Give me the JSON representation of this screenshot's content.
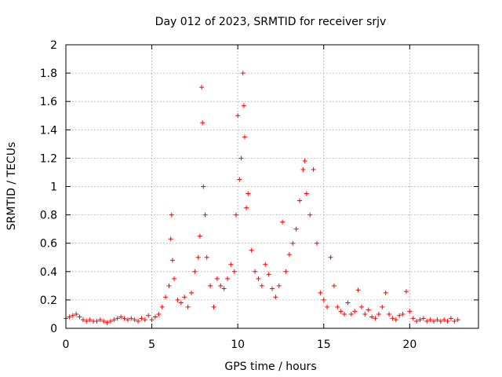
{
  "chart_data": {
    "type": "scatter",
    "title": "Day 012 of 2023, SRMTID for receiver srjv",
    "xlabel": "GPS time / hours",
    "ylabel": "SRMTID / TECUs",
    "xlim": [
      0,
      24
    ],
    "ylim": [
      0,
      2
    ],
    "xticks": [
      "0",
      "5",
      "10",
      "15",
      "20"
    ],
    "yticks": [
      "0",
      "0.2",
      "0.4",
      "0.6",
      "0.8",
      "1",
      "1.2",
      "1.4",
      "1.6",
      "1.8",
      "2"
    ],
    "grid": true,
    "marker": "+",
    "series": [
      {
        "name": "srjv",
        "color": "#ff0000",
        "points": [
          [
            0.0,
            0.07
          ],
          [
            0.2,
            0.08
          ],
          [
            0.4,
            0.09
          ],
          [
            0.6,
            0.1
          ],
          [
            0.8,
            0.08
          ],
          [
            1.0,
            0.06
          ],
          [
            1.2,
            0.05
          ],
          [
            1.4,
            0.06
          ],
          [
            1.6,
            0.05
          ],
          [
            1.8,
            0.05
          ],
          [
            2.0,
            0.06
          ],
          [
            2.2,
            0.05
          ],
          [
            2.4,
            0.04
          ],
          [
            2.6,
            0.05
          ],
          [
            2.8,
            0.06
          ],
          [
            3.0,
            0.07
          ],
          [
            3.2,
            0.08
          ],
          [
            3.4,
            0.07
          ],
          [
            3.6,
            0.06
          ],
          [
            3.8,
            0.07
          ],
          [
            4.0,
            0.06
          ],
          [
            4.2,
            0.05
          ],
          [
            4.4,
            0.07
          ],
          [
            4.6,
            0.06
          ],
          [
            4.8,
            0.09
          ],
          [
            5.0,
            0.06
          ],
          [
            5.2,
            0.08
          ],
          [
            5.4,
            0.1
          ],
          [
            5.6,
            0.15
          ],
          [
            5.8,
            0.22
          ],
          [
            6.0,
            0.3
          ],
          [
            6.1,
            0.63
          ],
          [
            6.15,
            0.8
          ],
          [
            6.2,
            0.48
          ],
          [
            6.3,
            0.35
          ],
          [
            6.5,
            0.2
          ],
          [
            6.7,
            0.18
          ],
          [
            6.9,
            0.22
          ],
          [
            7.1,
            0.15
          ],
          [
            7.3,
            0.25
          ],
          [
            7.5,
            0.4
          ],
          [
            7.7,
            0.5
          ],
          [
            7.8,
            0.65
          ],
          [
            7.9,
            1.7
          ],
          [
            7.95,
            1.45
          ],
          [
            8.0,
            1.0
          ],
          [
            8.1,
            0.8
          ],
          [
            8.2,
            0.5
          ],
          [
            8.4,
            0.3
          ],
          [
            8.6,
            0.15
          ],
          [
            8.8,
            0.35
          ],
          [
            9.0,
            0.3
          ],
          [
            9.2,
            0.28
          ],
          [
            9.4,
            0.35
          ],
          [
            9.6,
            0.45
          ],
          [
            9.8,
            0.4
          ],
          [
            9.9,
            0.8
          ],
          [
            10.0,
            1.5
          ],
          [
            10.1,
            1.05
          ],
          [
            10.2,
            1.2
          ],
          [
            10.3,
            1.8
          ],
          [
            10.35,
            1.57
          ],
          [
            10.4,
            1.35
          ],
          [
            10.5,
            0.85
          ],
          [
            10.6,
            0.95
          ],
          [
            10.8,
            0.55
          ],
          [
            11.0,
            0.4
          ],
          [
            11.2,
            0.35
          ],
          [
            11.4,
            0.3
          ],
          [
            11.6,
            0.45
          ],
          [
            11.8,
            0.38
          ],
          [
            12.0,
            0.28
          ],
          [
            12.2,
            0.22
          ],
          [
            12.4,
            0.3
          ],
          [
            12.6,
            0.75
          ],
          [
            12.8,
            0.4
          ],
          [
            13.0,
            0.52
          ],
          [
            13.2,
            0.6
          ],
          [
            13.4,
            0.7
          ],
          [
            13.6,
            0.9
          ],
          [
            13.8,
            1.12
          ],
          [
            13.9,
            1.18
          ],
          [
            14.0,
            0.95
          ],
          [
            14.2,
            0.8
          ],
          [
            14.4,
            1.12
          ],
          [
            14.6,
            0.6
          ],
          [
            14.8,
            0.25
          ],
          [
            15.0,
            0.2
          ],
          [
            15.2,
            0.15
          ],
          [
            15.4,
            0.5
          ],
          [
            15.6,
            0.3
          ],
          [
            15.8,
            0.15
          ],
          [
            16.0,
            0.12
          ],
          [
            16.2,
            0.1
          ],
          [
            16.4,
            0.18
          ],
          [
            16.6,
            0.1
          ],
          [
            16.8,
            0.12
          ],
          [
            17.0,
            0.27
          ],
          [
            17.2,
            0.15
          ],
          [
            17.4,
            0.1
          ],
          [
            17.6,
            0.13
          ],
          [
            17.8,
            0.08
          ],
          [
            18.0,
            0.07
          ],
          [
            18.2,
            0.1
          ],
          [
            18.4,
            0.15
          ],
          [
            18.6,
            0.25
          ],
          [
            18.8,
            0.1
          ],
          [
            19.0,
            0.07
          ],
          [
            19.2,
            0.06
          ],
          [
            19.4,
            0.09
          ],
          [
            19.6,
            0.1
          ],
          [
            19.8,
            0.26
          ],
          [
            20.0,
            0.12
          ],
          [
            20.2,
            0.07
          ],
          [
            20.4,
            0.05
          ],
          [
            20.6,
            0.06
          ],
          [
            20.8,
            0.07
          ],
          [
            21.0,
            0.05
          ],
          [
            21.2,
            0.06
          ],
          [
            21.4,
            0.05
          ],
          [
            21.6,
            0.06
          ],
          [
            21.8,
            0.05
          ],
          [
            22.0,
            0.06
          ],
          [
            22.2,
            0.05
          ],
          [
            22.4,
            0.07
          ],
          [
            22.6,
            0.05
          ],
          [
            22.8,
            0.06
          ]
        ]
      }
    ]
  }
}
